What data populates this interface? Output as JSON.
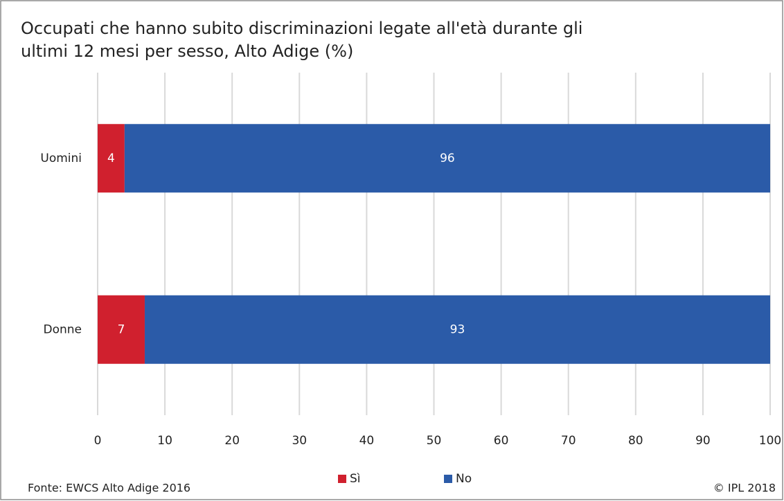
{
  "chart_data": {
    "type": "bar",
    "orientation": "horizontal",
    "stacked": true,
    "title": [
      "Occupati che hanno subito discriminazioni legate all'età durante gli",
      "ultimi 12 mesi per sesso, Alto Adige (%)"
    ],
    "categories": [
      "Uomini",
      "Donne"
    ],
    "series": [
      {
        "name": "Sì",
        "color": "#d0202e",
        "values": [
          4,
          7
        ]
      },
      {
        "name": "No",
        "color": "#2b5ba8",
        "values": [
          96,
          93
        ]
      }
    ],
    "xlim": [
      0,
      100
    ],
    "xticks": [
      0,
      10,
      20,
      30,
      40,
      50,
      60,
      70,
      80,
      90,
      100
    ],
    "grid": true,
    "legend": "bottom",
    "source": "Fonte: EWCS Alto Adige 2016",
    "copyright": "© IPL 2018"
  }
}
